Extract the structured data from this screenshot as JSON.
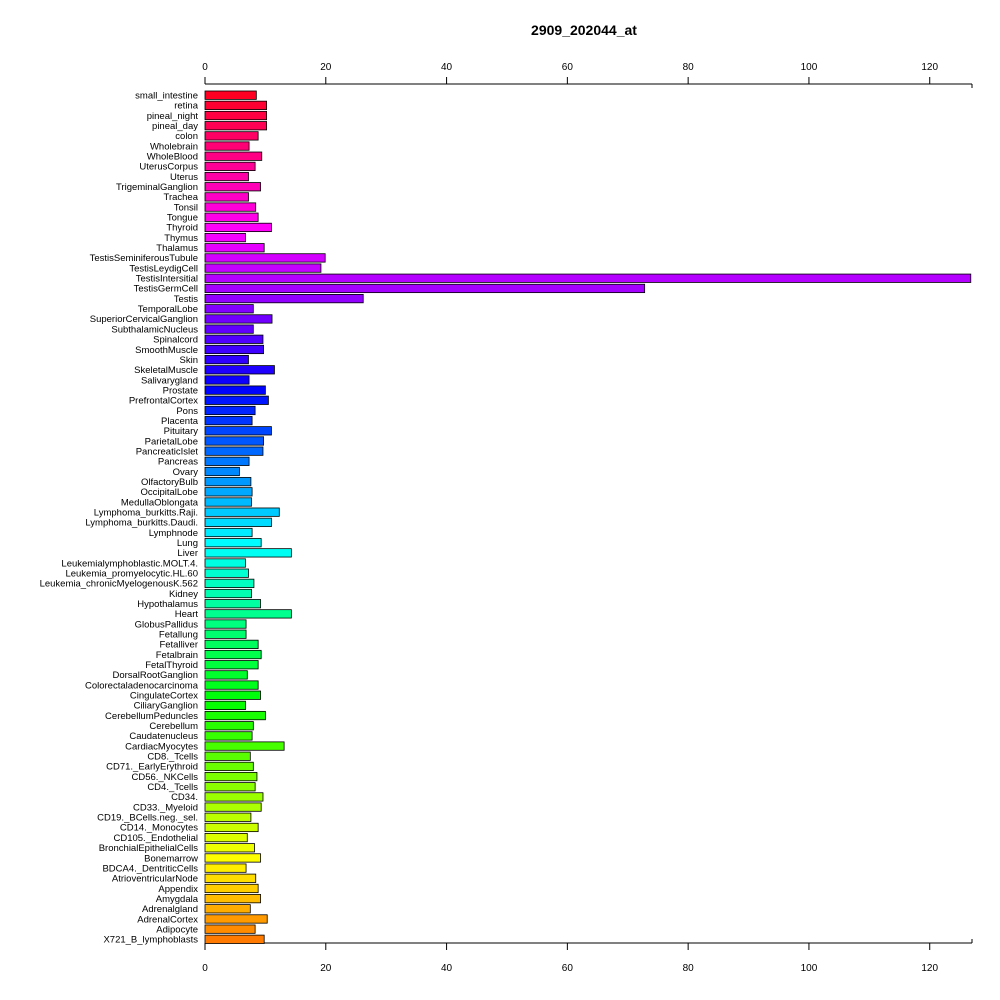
{
  "chart_data": {
    "type": "bar",
    "orientation": "horizontal",
    "title": "2909_202044_at",
    "xlabel": "",
    "ylabel": "",
    "xlim": [
      0,
      127
    ],
    "x_ticks": [
      0,
      20,
      40,
      60,
      80,
      100,
      120
    ],
    "grid": false,
    "legend": "none",
    "categories": [
      "small_intestine",
      "retina",
      "pineal_night",
      "pineal_day",
      "colon",
      "Wholebrain",
      "WholeBlood",
      "UterusCorpus",
      "Uterus",
      "TrigeminalGanglion",
      "Trachea",
      "Tonsil",
      "Tongue",
      "Thyroid",
      "Thymus",
      "Thalamus",
      "TestisSeminiferousTubule",
      "TestisLeydigCell",
      "TestisIntersitial",
      "TestisGermCell",
      "Testis",
      "TemporalLobe",
      "SuperiorCervicalGanglion",
      "SubthalamicNucleus",
      "Spinalcord",
      "SmoothMuscle",
      "Skin",
      "SkeletalMuscle",
      "Salivarygland",
      "Prostate",
      "PrefrontalCortex",
      "Pons",
      "Placenta",
      "Pituitary",
      "ParietalLobe",
      "PancreaticIslet",
      "Pancreas",
      "Ovary",
      "OlfactoryBulb",
      "OccipitalLobe",
      "MedullaOblongata",
      "Lymphoma_burkitts.Raji.",
      "Lymphoma_burkitts.Daudi.",
      "Lymphnode",
      "Lung",
      "Liver",
      "Leukemialymphoblastic.MOLT.4.",
      "Leukemia_promyelocytic.HL.60",
      "Leukemia_chronicMyelogenousK.562",
      "Kidney",
      "Hypothalamus",
      "Heart",
      "GlobusPallidus",
      "Fetallung",
      "Fetalliver",
      "Fetalbrain",
      "FetalThyroid",
      "DorsalRootGanglion",
      "Colorectaladenocarcinoma",
      "CingulateCortex",
      "CiliaryGanglion",
      "CerebellumPeduncles",
      "Cerebellum",
      "Caudatenucleus",
      "CardiacMyocytes",
      "CD8._Tcells",
      "CD71._EarlyErythroid",
      "CD56._NKCells",
      "CD4._Tcells",
      "CD34.",
      "CD33._Myeloid",
      "CD19._BCells.neg._sel.",
      "CD14._Monocytes",
      "CD105._Endothelial",
      "BronchialEpithelialCells",
      "Bonemarrow",
      "BDCA4._DentriticCells",
      "AtrioventricularNode",
      "Appendix",
      "Amygdala",
      "Adrenalgland",
      "AdrenalCortex",
      "Adipocyte",
      "X721_B_lymphoblasts"
    ],
    "values": [
      8.5,
      10.2,
      10.2,
      10.2,
      8.8,
      7.3,
      9.4,
      8.3,
      7.2,
      9.2,
      7.2,
      8.4,
      8.8,
      11.0,
      6.7,
      9.8,
      19.9,
      19.2,
      126.8,
      72.8,
      26.2,
      8.0,
      11.1,
      8.0,
      9.6,
      9.7,
      7.2,
      11.5,
      7.3,
      10.0,
      10.5,
      8.3,
      7.8,
      11.0,
      9.7,
      9.6,
      7.3,
      5.7,
      7.6,
      7.8,
      7.7,
      12.3,
      11.0,
      7.8,
      9.3,
      14.3,
      6.7,
      7.2,
      8.1,
      7.7,
      9.2,
      14.3,
      6.8,
      6.8,
      8.8,
      9.3,
      8.8,
      7.0,
      8.8,
      9.2,
      6.7,
      10.0,
      8.0,
      7.8,
      13.1,
      7.5,
      8.0,
      8.6,
      8.3,
      9.6,
      9.3,
      7.6,
      8.8,
      7.0,
      8.2,
      9.2,
      6.8,
      8.4,
      8.8,
      9.2,
      7.5,
      10.3,
      8.3,
      9.8
    ],
    "colors": [
      "#ff0022",
      "#ff0033",
      "#ff0043",
      "#ff0054",
      "#ff0064",
      "#ff0075",
      "#ff0085",
      "#ff0096",
      "#ff00a6",
      "#ff00b7",
      "#ff00c7",
      "#ff00d8",
      "#ff00e8",
      "#ff00f9",
      "#f500ff",
      "#e500ff",
      "#d400ff",
      "#c400ff",
      "#b300ff",
      "#a300ff",
      "#9200ff",
      "#8200ff",
      "#7100ff",
      "#6100ff",
      "#5000ff",
      "#4000ff",
      "#2f00ff",
      "#1f00ff",
      "#0e00ff",
      "#0004ff",
      "#0015ff",
      "#0025ff",
      "#0036ff",
      "#0046ff",
      "#0057ff",
      "#0067ff",
      "#0078ff",
      "#0088ff",
      "#0099ff",
      "#00a9ff",
      "#00baff",
      "#00caff",
      "#00dbff",
      "#00ebff",
      "#00fcff",
      "#00fff2",
      "#00ffe2",
      "#00ffd1",
      "#00ffc1",
      "#00ffb0",
      "#00ffa0",
      "#00ff8f",
      "#00ff7f",
      "#00ff6e",
      "#00ff5e",
      "#00ff4d",
      "#00ff3d",
      "#00ff2c",
      "#00ff1c",
      "#00ff0b",
      "#06ff00",
      "#17ff00",
      "#27ff00",
      "#38ff00",
      "#48ff00",
      "#59ff00",
      "#69ff00",
      "#7aff00",
      "#8aff00",
      "#9bff00",
      "#abff00",
      "#bcff00",
      "#ccff00",
      "#ddff00",
      "#edff00",
      "#fefe00",
      "#ffee00",
      "#ffdd00",
      "#ffcd00",
      "#ffbc00",
      "#ffac00",
      "#ff9b00",
      "#ff8b00",
      "#ff7a00"
    ]
  }
}
